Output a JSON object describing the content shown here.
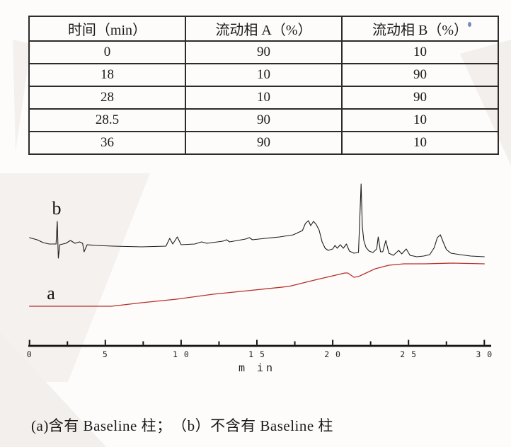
{
  "page": {
    "background": "#fdfcfb",
    "watermark_color": "#f3efec"
  },
  "gradient_table": {
    "headers": [
      "时间（min）",
      "流动相 A（%）",
      "流动相 B（%）"
    ],
    "rows": [
      [
        "0",
        "90",
        "10"
      ],
      [
        "18",
        "10",
        "90"
      ],
      [
        "28",
        "10",
        "90"
      ],
      [
        "28.5",
        "90",
        "10"
      ],
      [
        "36",
        "90",
        "10"
      ]
    ]
  },
  "caption": "(a)含有 Baseline 柱；　（b）不含有 Baseline 柱",
  "chart_data": {
    "type": "line",
    "title": "",
    "xlabel": "m in",
    "ylabel": "",
    "xlim": [
      0,
      30
    ],
    "x_ticks": [
      0,
      5,
      10,
      15,
      20,
      25,
      30
    ],
    "x_tick_labels": [
      "0",
      "5",
      "1 0",
      "1 5",
      "2 0",
      "2 5",
      "3 0"
    ],
    "x_minor_ticks": [
      2.5,
      7.5,
      12.5,
      17.5,
      22.5,
      27.5
    ],
    "grid": false,
    "legend": "inline-labels",
    "axis_color": "#141414",
    "y_units": "arbitrary detector response",
    "series": [
      {
        "name": "b",
        "color": "#1c1c1c",
        "points": [
          [
            0,
            34
          ],
          [
            0.5,
            31
          ],
          [
            0.9,
            27
          ],
          [
            1.3,
            25
          ],
          [
            1.75,
            25
          ],
          [
            1.83,
            57
          ],
          [
            1.9,
            5
          ],
          [
            2.0,
            24
          ],
          [
            2.4,
            26
          ],
          [
            2.7,
            30
          ],
          [
            3.0,
            26
          ],
          [
            3.3,
            28
          ],
          [
            3.5,
            26
          ],
          [
            3.6,
            14
          ],
          [
            3.8,
            24
          ],
          [
            4.35,
            23
          ],
          [
            5.5,
            22
          ],
          [
            7.4,
            21
          ],
          [
            9.0,
            22
          ],
          [
            9.25,
            33
          ],
          [
            9.45,
            25
          ],
          [
            9.75,
            35
          ],
          [
            10.0,
            24
          ],
          [
            10.9,
            25
          ],
          [
            11.35,
            28
          ],
          [
            11.7,
            26
          ],
          [
            12.75,
            29
          ],
          [
            13.0,
            31
          ],
          [
            13.2,
            28
          ],
          [
            14.25,
            32
          ],
          [
            14.5,
            34
          ],
          [
            14.7,
            31
          ],
          [
            15.55,
            33
          ],
          [
            16.5,
            35
          ],
          [
            17.4,
            38
          ],
          [
            18.0,
            44
          ],
          [
            18.2,
            54
          ],
          [
            18.4,
            58
          ],
          [
            18.55,
            51
          ],
          [
            18.73,
            57
          ],
          [
            18.9,
            53
          ],
          [
            19.1,
            45
          ],
          [
            19.3,
            28
          ],
          [
            19.5,
            19
          ],
          [
            19.7,
            16
          ],
          [
            20.0,
            18
          ],
          [
            20.15,
            23
          ],
          [
            20.3,
            19
          ],
          [
            20.5,
            24
          ],
          [
            20.7,
            19
          ],
          [
            20.9,
            25
          ],
          [
            21.1,
            15
          ],
          [
            21.4,
            12
          ],
          [
            21.7,
            13
          ],
          [
            21.8,
            70
          ],
          [
            21.87,
            110
          ],
          [
            21.95,
            50
          ],
          [
            22.05,
            30
          ],
          [
            22.2,
            20
          ],
          [
            22.4,
            15
          ],
          [
            22.65,
            13
          ],
          [
            22.9,
            18
          ],
          [
            23.0,
            35
          ],
          [
            23.15,
            14
          ],
          [
            23.3,
            14
          ],
          [
            23.5,
            30
          ],
          [
            23.7,
            12
          ],
          [
            24.0,
            9
          ],
          [
            24.35,
            16
          ],
          [
            24.55,
            11
          ],
          [
            24.85,
            18
          ],
          [
            25.1,
            9
          ],
          [
            25.55,
            7
          ],
          [
            26.0,
            8
          ],
          [
            26.4,
            10
          ],
          [
            26.7,
            20
          ],
          [
            26.9,
            34
          ],
          [
            27.1,
            38
          ],
          [
            27.3,
            27
          ],
          [
            27.5,
            17
          ],
          [
            27.8,
            12
          ],
          [
            28.4,
            10
          ],
          [
            29.1,
            8
          ],
          [
            30.0,
            7
          ]
        ]
      },
      {
        "name": "a",
        "color": "#b5302a",
        "points": [
          [
            0,
            7
          ],
          [
            5.4,
            7
          ],
          [
            7.4,
            12
          ],
          [
            9.7,
            17
          ],
          [
            12.1,
            24
          ],
          [
            14.4,
            29
          ],
          [
            17.1,
            35
          ],
          [
            18.8,
            44
          ],
          [
            20.0,
            50
          ],
          [
            20.8,
            54
          ],
          [
            21.0,
            54
          ],
          [
            21.4,
            48
          ],
          [
            21.7,
            49
          ],
          [
            22.1,
            53
          ],
          [
            22.8,
            60
          ],
          [
            23.7,
            65
          ],
          [
            24.7,
            67
          ],
          [
            26.1,
            67
          ],
          [
            27.9,
            68
          ],
          [
            30.0,
            67
          ]
        ]
      }
    ]
  }
}
